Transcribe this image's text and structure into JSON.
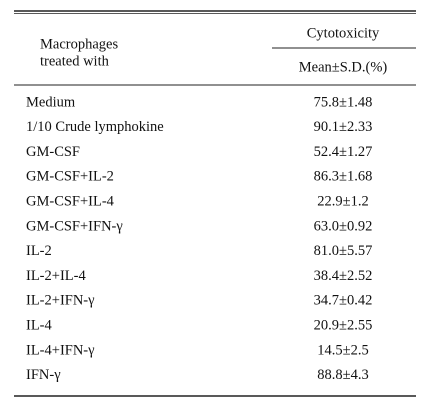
{
  "table": {
    "row_header": [
      "Macrophages",
      "treated with"
    ],
    "column_group": "Cytotoxicity",
    "column_header": "Mean±S.D.(%)",
    "rows": [
      [
        "Medium",
        "75.8±1.48"
      ],
      [
        "1/10 Crude lymphokine",
        "90.1±2.33"
      ],
      [
        "GM-CSF",
        "52.4±1.27"
      ],
      [
        "GM-CSF+IL-2",
        "86.3±1.68"
      ],
      [
        "GM-CSF+IL-4",
        "22.9±1.2"
      ],
      [
        "GM-CSF+IFN-γ",
        "63.0±0.92"
      ],
      [
        "IL-2",
        "81.0±5.57"
      ],
      [
        "IL-2+IL-4",
        "38.4±2.52"
      ],
      [
        "IL-2+IFN-γ",
        "34.7±0.42"
      ],
      [
        "IL-4",
        "20.9±2.55"
      ],
      [
        "IL-4+IFN-γ",
        "14.5±2.5"
      ],
      [
        "IFN-γ",
        "88.8±4.3"
      ]
    ]
  }
}
